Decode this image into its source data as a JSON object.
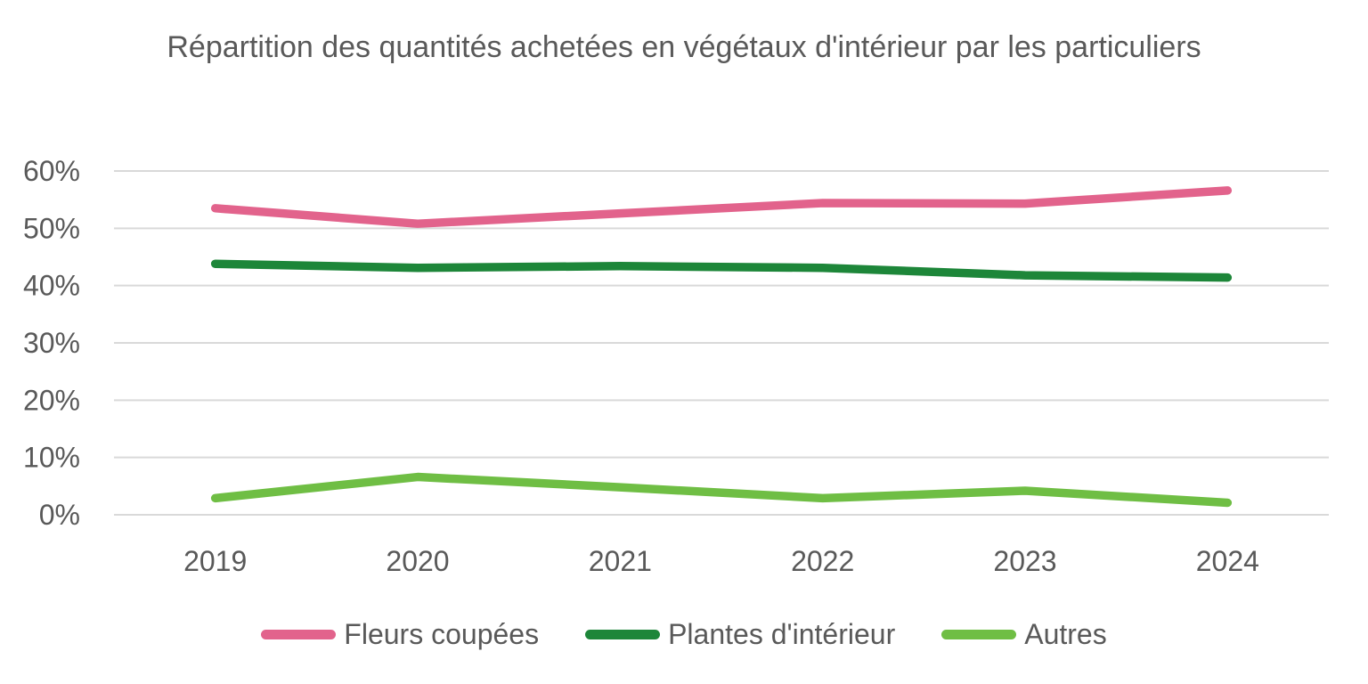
{
  "title": "Répartition des quantités achetées en végétaux d'intérieur par les particuliers",
  "chart_data": {
    "type": "line",
    "categories": [
      "2019",
      "2020",
      "2021",
      "2022",
      "2023",
      "2024"
    ],
    "series": [
      {
        "name": "Fleurs coupées",
        "color": "#e2638c",
        "values": [
          53.5,
          50.8,
          52.6,
          54.4,
          54.3,
          56.6
        ]
      },
      {
        "name": "Plantes d'intérieur",
        "color": "#1d8639",
        "values": [
          43.8,
          43.1,
          43.4,
          43.1,
          41.8,
          41.4
        ]
      },
      {
        "name": "Autres",
        "color": "#6fbe44",
        "values": [
          2.9,
          6.6,
          4.8,
          2.9,
          4.2,
          2.1
        ]
      }
    ],
    "y_ticks": [
      "0%",
      "10%",
      "20%",
      "30%",
      "40%",
      "50%",
      "60%"
    ],
    "ylim": [
      0,
      60
    ],
    "xlabel": "",
    "ylabel": "",
    "grid": true,
    "legend_position": "bottom",
    "colors": {
      "grid": "#d9d9d9",
      "text": "#595959",
      "background": "#ffffff"
    }
  }
}
